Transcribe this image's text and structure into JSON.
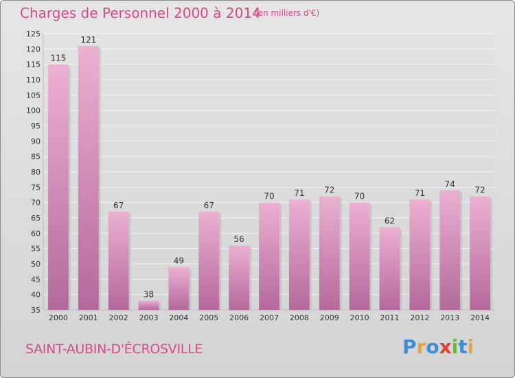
{
  "title": "Charges de Personnel 2000 à 2014",
  "unit": "(en milliers d'€)",
  "commune": "SAINT-AUBIN-D'ÉCROSVILLE",
  "logo": {
    "text": "Proxiti",
    "colors": [
      "#3a8fd6",
      "#e8a23a",
      "#3a8fd6",
      "#e0402e",
      "#6db33f",
      "#3a8fd6",
      "#e8a23a"
    ]
  },
  "colors": {
    "accent": "#d64a8c",
    "bar_light": "#e9a6cc",
    "bar_dark": "#b86a98"
  },
  "chart_data": {
    "type": "bar",
    "title": "Charges de Personnel 2000 à 2014",
    "categories": [
      "2000",
      "2001",
      "2002",
      "2003",
      "2004",
      "2005",
      "2006",
      "2007",
      "2008",
      "2009",
      "2010",
      "2011",
      "2012",
      "2013",
      "2014"
    ],
    "values": [
      115,
      121,
      67,
      38,
      49,
      67,
      56,
      70,
      71,
      72,
      70,
      62,
      71,
      74,
      72
    ],
    "ylim": [
      35,
      125
    ],
    "yticks": [
      35,
      40,
      45,
      50,
      55,
      60,
      65,
      70,
      75,
      80,
      85,
      90,
      95,
      100,
      105,
      110,
      115,
      120,
      125
    ],
    "grid": true,
    "xlabel": "",
    "ylabel": ""
  }
}
